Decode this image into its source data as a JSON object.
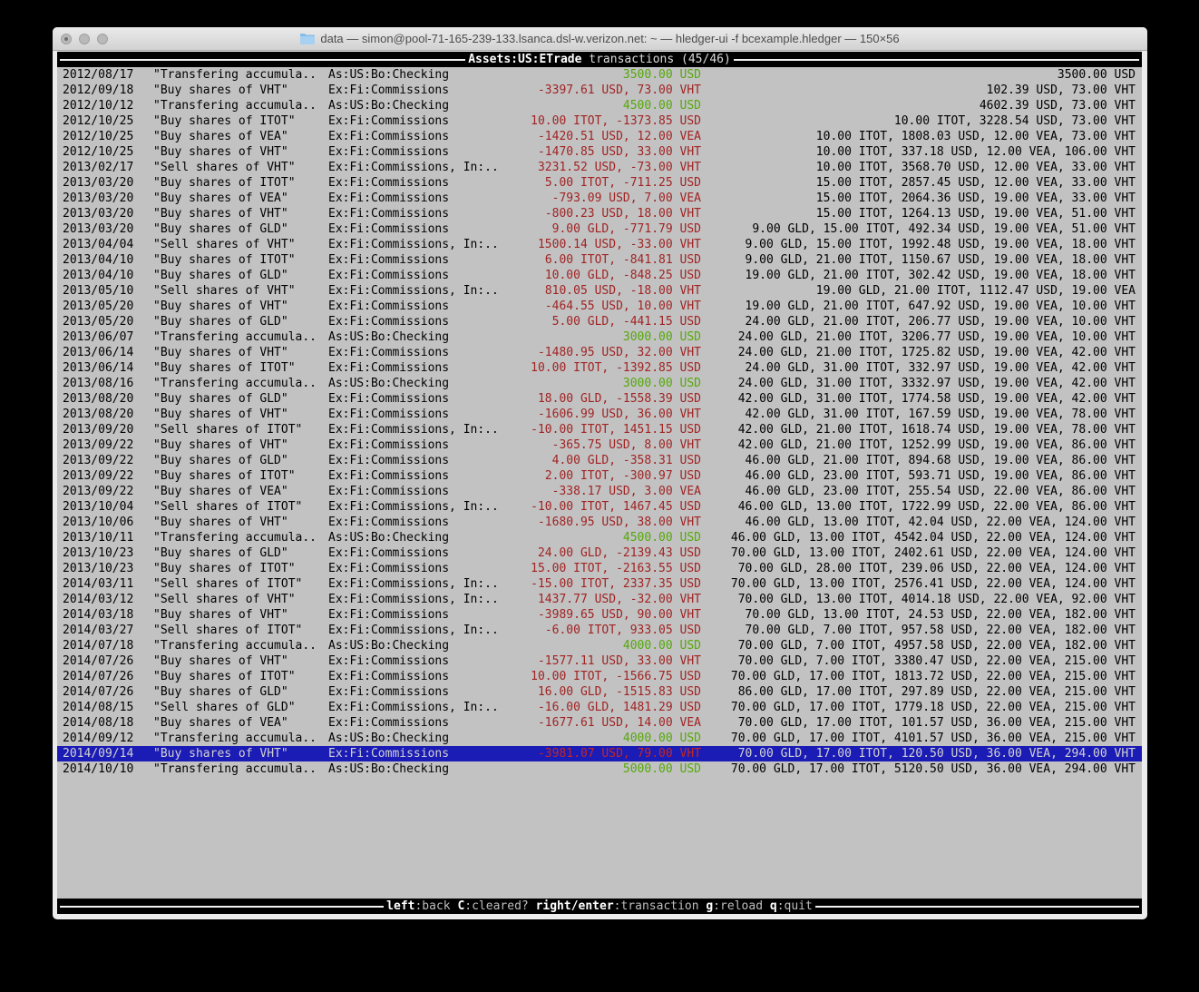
{
  "window": {
    "title": "data — simon@pool-71-165-239-133.lsanca.dsl-w.verizon.net: ~ — hledger-ui -f bcexample.hledger — 150×56"
  },
  "screen_header": {
    "account": "Assets:US:ETrade",
    "rest": " transactions (45/46)"
  },
  "status_bar": {
    "hints": [
      {
        "key": "left",
        "action": ":back"
      },
      {
        "key": "C",
        "action": ":cleared?"
      },
      {
        "key": "right/enter",
        "action": ":transaction"
      },
      {
        "key": "g",
        "action": ":reload"
      },
      {
        "key": "q",
        "action": ":quit"
      }
    ]
  },
  "colors": {
    "positive": "#55a80a",
    "negative": "#a12323",
    "selection_bg": "#1b1bb5",
    "selection_fg": "#d2d2d2",
    "selection_negative": "#c02828",
    "terminal_bg": "#c2c2c2",
    "bar_bg": "#000000",
    "bar_line": "#f2f2f2"
  },
  "transactions": [
    {
      "date": "2012/08/17",
      "description": "\"Transfering accumula..",
      "account": "As:US:Bo:Checking",
      "change": "3500.00 USD",
      "positive": true,
      "balance": "3500.00 USD"
    },
    {
      "date": "2012/09/18",
      "description": "\"Buy shares of VHT\"",
      "account": "Ex:Fi:Commissions",
      "change": "-3397.61 USD, 73.00 VHT",
      "positive": false,
      "balance": "102.39 USD, 73.00 VHT"
    },
    {
      "date": "2012/10/12",
      "description": "\"Transfering accumula..",
      "account": "As:US:Bo:Checking",
      "change": "4500.00 USD",
      "positive": true,
      "balance": "4602.39 USD, 73.00 VHT"
    },
    {
      "date": "2012/10/25",
      "description": "\"Buy shares of ITOT\"",
      "account": "Ex:Fi:Commissions",
      "change": "10.00 ITOT, -1373.85 USD",
      "positive": false,
      "balance": "10.00 ITOT, 3228.54 USD, 73.00 VHT"
    },
    {
      "date": "2012/10/25",
      "description": "\"Buy shares of VEA\"",
      "account": "Ex:Fi:Commissions",
      "change": "-1420.51 USD, 12.00 VEA",
      "positive": false,
      "balance": "10.00 ITOT, 1808.03 USD, 12.00 VEA, 73.00 VHT"
    },
    {
      "date": "2012/10/25",
      "description": "\"Buy shares of VHT\"",
      "account": "Ex:Fi:Commissions",
      "change": "-1470.85 USD, 33.00 VHT",
      "positive": false,
      "balance": "10.00 ITOT, 337.18 USD, 12.00 VEA, 106.00 VHT"
    },
    {
      "date": "2013/02/17",
      "description": "\"Sell shares of VHT\"",
      "account": "Ex:Fi:Commissions, In:..",
      "change": "3231.52 USD, -73.00 VHT",
      "positive": false,
      "balance": "10.00 ITOT, 3568.70 USD, 12.00 VEA, 33.00 VHT"
    },
    {
      "date": "2013/03/20",
      "description": "\"Buy shares of ITOT\"",
      "account": "Ex:Fi:Commissions",
      "change": "5.00 ITOT, -711.25 USD",
      "positive": false,
      "balance": "15.00 ITOT, 2857.45 USD, 12.00 VEA, 33.00 VHT"
    },
    {
      "date": "2013/03/20",
      "description": "\"Buy shares of VEA\"",
      "account": "Ex:Fi:Commissions",
      "change": "-793.09 USD, 7.00 VEA",
      "positive": false,
      "balance": "15.00 ITOT, 2064.36 USD, 19.00 VEA, 33.00 VHT"
    },
    {
      "date": "2013/03/20",
      "description": "\"Buy shares of VHT\"",
      "account": "Ex:Fi:Commissions",
      "change": "-800.23 USD, 18.00 VHT",
      "positive": false,
      "balance": "15.00 ITOT, 1264.13 USD, 19.00 VEA, 51.00 VHT"
    },
    {
      "date": "2013/03/20",
      "description": "\"Buy shares of GLD\"",
      "account": "Ex:Fi:Commissions",
      "change": "9.00 GLD, -771.79 USD",
      "positive": false,
      "balance": "9.00 GLD, 15.00 ITOT, 492.34 USD, 19.00 VEA, 51.00 VHT"
    },
    {
      "date": "2013/04/04",
      "description": "\"Sell shares of VHT\"",
      "account": "Ex:Fi:Commissions, In:..",
      "change": "1500.14 USD, -33.00 VHT",
      "positive": false,
      "balance": "9.00 GLD, 15.00 ITOT, 1992.48 USD, 19.00 VEA, 18.00 VHT"
    },
    {
      "date": "2013/04/10",
      "description": "\"Buy shares of ITOT\"",
      "account": "Ex:Fi:Commissions",
      "change": "6.00 ITOT, -841.81 USD",
      "positive": false,
      "balance": "9.00 GLD, 21.00 ITOT, 1150.67 USD, 19.00 VEA, 18.00 VHT"
    },
    {
      "date": "2013/04/10",
      "description": "\"Buy shares of GLD\"",
      "account": "Ex:Fi:Commissions",
      "change": "10.00 GLD, -848.25 USD",
      "positive": false,
      "balance": "19.00 GLD, 21.00 ITOT, 302.42 USD, 19.00 VEA, 18.00 VHT"
    },
    {
      "date": "2013/05/10",
      "description": "\"Sell shares of VHT\"",
      "account": "Ex:Fi:Commissions, In:..",
      "change": "810.05 USD, -18.00 VHT",
      "positive": false,
      "balance": "19.00 GLD, 21.00 ITOT, 1112.47 USD, 19.00 VEA"
    },
    {
      "date": "2013/05/20",
      "description": "\"Buy shares of VHT\"",
      "account": "Ex:Fi:Commissions",
      "change": "-464.55 USD, 10.00 VHT",
      "positive": false,
      "balance": "19.00 GLD, 21.00 ITOT, 647.92 USD, 19.00 VEA, 10.00 VHT"
    },
    {
      "date": "2013/05/20",
      "description": "\"Buy shares of GLD\"",
      "account": "Ex:Fi:Commissions",
      "change": "5.00 GLD, -441.15 USD",
      "positive": false,
      "balance": "24.00 GLD, 21.00 ITOT, 206.77 USD, 19.00 VEA, 10.00 VHT"
    },
    {
      "date": "2013/06/07",
      "description": "\"Transfering accumula..",
      "account": "As:US:Bo:Checking",
      "change": "3000.00 USD",
      "positive": true,
      "balance": "24.00 GLD, 21.00 ITOT, 3206.77 USD, 19.00 VEA, 10.00 VHT"
    },
    {
      "date": "2013/06/14",
      "description": "\"Buy shares of VHT\"",
      "account": "Ex:Fi:Commissions",
      "change": "-1480.95 USD, 32.00 VHT",
      "positive": false,
      "balance": "24.00 GLD, 21.00 ITOT, 1725.82 USD, 19.00 VEA, 42.00 VHT"
    },
    {
      "date": "2013/06/14",
      "description": "\"Buy shares of ITOT\"",
      "account": "Ex:Fi:Commissions",
      "change": "10.00 ITOT, -1392.85 USD",
      "positive": false,
      "balance": "24.00 GLD, 31.00 ITOT, 332.97 USD, 19.00 VEA, 42.00 VHT"
    },
    {
      "date": "2013/08/16",
      "description": "\"Transfering accumula..",
      "account": "As:US:Bo:Checking",
      "change": "3000.00 USD",
      "positive": true,
      "balance": "24.00 GLD, 31.00 ITOT, 3332.97 USD, 19.00 VEA, 42.00 VHT"
    },
    {
      "date": "2013/08/20",
      "description": "\"Buy shares of GLD\"",
      "account": "Ex:Fi:Commissions",
      "change": "18.00 GLD, -1558.39 USD",
      "positive": false,
      "balance": "42.00 GLD, 31.00 ITOT, 1774.58 USD, 19.00 VEA, 42.00 VHT"
    },
    {
      "date": "2013/08/20",
      "description": "\"Buy shares of VHT\"",
      "account": "Ex:Fi:Commissions",
      "change": "-1606.99 USD, 36.00 VHT",
      "positive": false,
      "balance": "42.00 GLD, 31.00 ITOT, 167.59 USD, 19.00 VEA, 78.00 VHT"
    },
    {
      "date": "2013/09/20",
      "description": "\"Sell shares of ITOT\"",
      "account": "Ex:Fi:Commissions, In:..",
      "change": "-10.00 ITOT, 1451.15 USD",
      "positive": false,
      "balance": "42.00 GLD, 21.00 ITOT, 1618.74 USD, 19.00 VEA, 78.00 VHT"
    },
    {
      "date": "2013/09/22",
      "description": "\"Buy shares of VHT\"",
      "account": "Ex:Fi:Commissions",
      "change": "-365.75 USD, 8.00 VHT",
      "positive": false,
      "balance": "42.00 GLD, 21.00 ITOT, 1252.99 USD, 19.00 VEA, 86.00 VHT"
    },
    {
      "date": "2013/09/22",
      "description": "\"Buy shares of GLD\"",
      "account": "Ex:Fi:Commissions",
      "change": "4.00 GLD, -358.31 USD",
      "positive": false,
      "balance": "46.00 GLD, 21.00 ITOT, 894.68 USD, 19.00 VEA, 86.00 VHT"
    },
    {
      "date": "2013/09/22",
      "description": "\"Buy shares of ITOT\"",
      "account": "Ex:Fi:Commissions",
      "change": "2.00 ITOT, -300.97 USD",
      "positive": false,
      "balance": "46.00 GLD, 23.00 ITOT, 593.71 USD, 19.00 VEA, 86.00 VHT"
    },
    {
      "date": "2013/09/22",
      "description": "\"Buy shares of VEA\"",
      "account": "Ex:Fi:Commissions",
      "change": "-338.17 USD, 3.00 VEA",
      "positive": false,
      "balance": "46.00 GLD, 23.00 ITOT, 255.54 USD, 22.00 VEA, 86.00 VHT"
    },
    {
      "date": "2013/10/04",
      "description": "\"Sell shares of ITOT\"",
      "account": "Ex:Fi:Commissions, In:..",
      "change": "-10.00 ITOT, 1467.45 USD",
      "positive": false,
      "balance": "46.00 GLD, 13.00 ITOT, 1722.99 USD, 22.00 VEA, 86.00 VHT"
    },
    {
      "date": "2013/10/06",
      "description": "\"Buy shares of VHT\"",
      "account": "Ex:Fi:Commissions",
      "change": "-1680.95 USD, 38.00 VHT",
      "positive": false,
      "balance": "46.00 GLD, 13.00 ITOT, 42.04 USD, 22.00 VEA, 124.00 VHT"
    },
    {
      "date": "2013/10/11",
      "description": "\"Transfering accumula..",
      "account": "As:US:Bo:Checking",
      "change": "4500.00 USD",
      "positive": true,
      "balance": "46.00 GLD, 13.00 ITOT, 4542.04 USD, 22.00 VEA, 124.00 VHT"
    },
    {
      "date": "2013/10/23",
      "description": "\"Buy shares of GLD\"",
      "account": "Ex:Fi:Commissions",
      "change": "24.00 GLD, -2139.43 USD",
      "positive": false,
      "balance": "70.00 GLD, 13.00 ITOT, 2402.61 USD, 22.00 VEA, 124.00 VHT"
    },
    {
      "date": "2013/10/23",
      "description": "\"Buy shares of ITOT\"",
      "account": "Ex:Fi:Commissions",
      "change": "15.00 ITOT, -2163.55 USD",
      "positive": false,
      "balance": "70.00 GLD, 28.00 ITOT, 239.06 USD, 22.00 VEA, 124.00 VHT"
    },
    {
      "date": "2014/03/11",
      "description": "\"Sell shares of ITOT\"",
      "account": "Ex:Fi:Commissions, In:..",
      "change": "-15.00 ITOT, 2337.35 USD",
      "positive": false,
      "balance": "70.00 GLD, 13.00 ITOT, 2576.41 USD, 22.00 VEA, 124.00 VHT"
    },
    {
      "date": "2014/03/12",
      "description": "\"Sell shares of VHT\"",
      "account": "Ex:Fi:Commissions, In:..",
      "change": "1437.77 USD, -32.00 VHT",
      "positive": false,
      "balance": "70.00 GLD, 13.00 ITOT, 4014.18 USD, 22.00 VEA, 92.00 VHT"
    },
    {
      "date": "2014/03/18",
      "description": "\"Buy shares of VHT\"",
      "account": "Ex:Fi:Commissions",
      "change": "-3989.65 USD, 90.00 VHT",
      "positive": false,
      "balance": "70.00 GLD, 13.00 ITOT, 24.53 USD, 22.00 VEA, 182.00 VHT"
    },
    {
      "date": "2014/03/27",
      "description": "\"Sell shares of ITOT\"",
      "account": "Ex:Fi:Commissions, In:..",
      "change": "-6.00 ITOT, 933.05 USD",
      "positive": false,
      "balance": "70.00 GLD, 7.00 ITOT, 957.58 USD, 22.00 VEA, 182.00 VHT"
    },
    {
      "date": "2014/07/18",
      "description": "\"Transfering accumula..",
      "account": "As:US:Bo:Checking",
      "change": "4000.00 USD",
      "positive": true,
      "balance": "70.00 GLD, 7.00 ITOT, 4957.58 USD, 22.00 VEA, 182.00 VHT"
    },
    {
      "date": "2014/07/26",
      "description": "\"Buy shares of VHT\"",
      "account": "Ex:Fi:Commissions",
      "change": "-1577.11 USD, 33.00 VHT",
      "positive": false,
      "balance": "70.00 GLD, 7.00 ITOT, 3380.47 USD, 22.00 VEA, 215.00 VHT"
    },
    {
      "date": "2014/07/26",
      "description": "\"Buy shares of ITOT\"",
      "account": "Ex:Fi:Commissions",
      "change": "10.00 ITOT, -1566.75 USD",
      "positive": false,
      "balance": "70.00 GLD, 17.00 ITOT, 1813.72 USD, 22.00 VEA, 215.00 VHT"
    },
    {
      "date": "2014/07/26",
      "description": "\"Buy shares of GLD\"",
      "account": "Ex:Fi:Commissions",
      "change": "16.00 GLD, -1515.83 USD",
      "positive": false,
      "balance": "86.00 GLD, 17.00 ITOT, 297.89 USD, 22.00 VEA, 215.00 VHT"
    },
    {
      "date": "2014/08/15",
      "description": "\"Sell shares of GLD\"",
      "account": "Ex:Fi:Commissions, In:..",
      "change": "-16.00 GLD, 1481.29 USD",
      "positive": false,
      "balance": "70.00 GLD, 17.00 ITOT, 1779.18 USD, 22.00 VEA, 215.00 VHT"
    },
    {
      "date": "2014/08/18",
      "description": "\"Buy shares of VEA\"",
      "account": "Ex:Fi:Commissions",
      "change": "-1677.61 USD, 14.00 VEA",
      "positive": false,
      "balance": "70.00 GLD, 17.00 ITOT, 101.57 USD, 36.00 VEA, 215.00 VHT"
    },
    {
      "date": "2014/09/12",
      "description": "\"Transfering accumula..",
      "account": "As:US:Bo:Checking",
      "change": "4000.00 USD",
      "positive": true,
      "balance": "70.00 GLD, 17.00 ITOT, 4101.57 USD, 36.00 VEA, 215.00 VHT"
    },
    {
      "date": "2014/09/14",
      "description": "\"Buy shares of VHT\"",
      "account": "Ex:Fi:Commissions",
      "change": "-3981.07 USD, 79.00 VHT",
      "positive": false,
      "balance": "70.00 GLD, 17.00 ITOT, 120.50 USD, 36.00 VEA, 294.00 VHT",
      "selected": true
    },
    {
      "date": "2014/10/10",
      "description": "\"Transfering accumula..",
      "account": "As:US:Bo:Checking",
      "change": "5000.00 USD",
      "positive": true,
      "balance": "70.00 GLD, 17.00 ITOT, 5120.50 USD, 36.00 VEA, 294.00 VHT"
    }
  ]
}
